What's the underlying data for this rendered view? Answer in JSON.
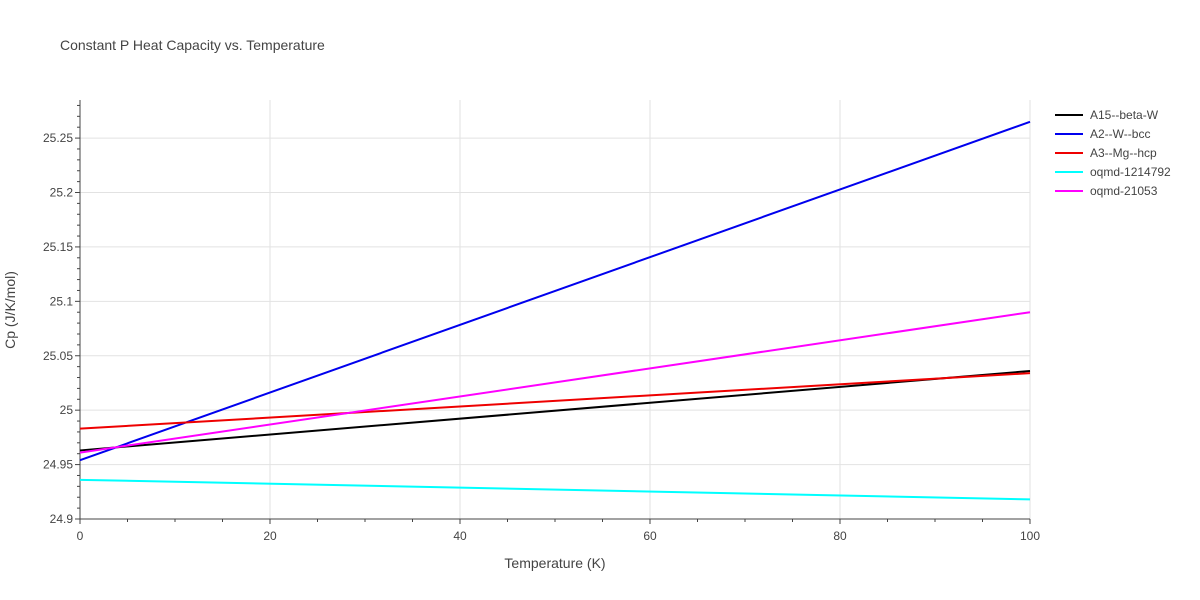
{
  "chart_data": {
    "type": "line",
    "title": "Constant P Heat Capacity vs. Temperature",
    "xlabel": "Temperature (K)",
    "ylabel": "Cp (J/K/mol)",
    "xlim": [
      0,
      100
    ],
    "ylim": [
      24.9,
      25.285
    ],
    "xticks": [
      0,
      20,
      40,
      60,
      80,
      100
    ],
    "xtick_labels": [
      "0",
      "20",
      "40",
      "60",
      "80",
      "100"
    ],
    "yticks": [
      24.9,
      24.95,
      25,
      25.05,
      25.1,
      25.15,
      25.2,
      25.25
    ],
    "ytick_labels": [
      "24.9",
      "24.95",
      "25",
      "25.05",
      "25.1",
      "25.15",
      "25.2",
      "25.25"
    ],
    "grid": true,
    "legend_position": "top-right",
    "series": [
      {
        "name": "A15--beta-W",
        "color": "#000000",
        "x": [
          0,
          100
        ],
        "y": [
          24.963,
          25.036
        ]
      },
      {
        "name": "A2--W--bcc",
        "color": "#0000ee",
        "x": [
          0,
          100
        ],
        "y": [
          24.954,
          25.265
        ]
      },
      {
        "name": "A3--Mg--hcp",
        "color": "#ee0000",
        "x": [
          0,
          100
        ],
        "y": [
          24.983,
          25.034
        ]
      },
      {
        "name": "oqmd-1214792",
        "color": "#00ffff",
        "x": [
          0,
          100
        ],
        "y": [
          24.936,
          24.918
        ]
      },
      {
        "name": "oqmd-21053",
        "color": "#ff00ff",
        "x": [
          0,
          100
        ],
        "y": [
          24.961,
          25.09
        ]
      }
    ]
  }
}
